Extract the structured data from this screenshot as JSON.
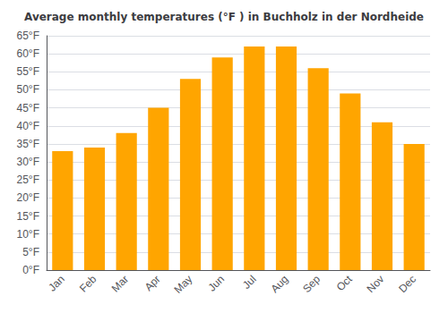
{
  "chart_data": {
    "type": "bar",
    "title": "Average monthly temperatures (°F ) in Buchholz in der Nordheide",
    "categories": [
      "Jan",
      "Feb",
      "Mar",
      "Apr",
      "May",
      "Jun",
      "Jul",
      "Aug",
      "Sep",
      "Oct",
      "Nov",
      "Dec"
    ],
    "values": [
      33,
      34,
      38,
      45,
      53,
      59,
      62,
      62,
      56,
      49,
      41,
      35
    ],
    "color": "#FFA500",
    "ylim": [
      0,
      65
    ],
    "yticks": [
      {
        "value": 0,
        "label": "0°F"
      },
      {
        "value": 5,
        "label": "5°F"
      },
      {
        "value": 10,
        "label": "10°F"
      },
      {
        "value": 15,
        "label": "15°F"
      },
      {
        "value": 20,
        "label": "20°F"
      },
      {
        "value": 25,
        "label": "25°F"
      },
      {
        "value": 30,
        "label": "30°F"
      },
      {
        "value": 35,
        "label": "35°F"
      },
      {
        "value": 40,
        "label": "40°F"
      },
      {
        "value": 45,
        "label": "45°F"
      },
      {
        "value": 50,
        "label": "50°F"
      },
      {
        "value": 55,
        "label": "55°F"
      },
      {
        "value": 60,
        "label": "60°F"
      },
      {
        "value": 65,
        "label": "65°F"
      }
    ],
    "grid": true
  }
}
